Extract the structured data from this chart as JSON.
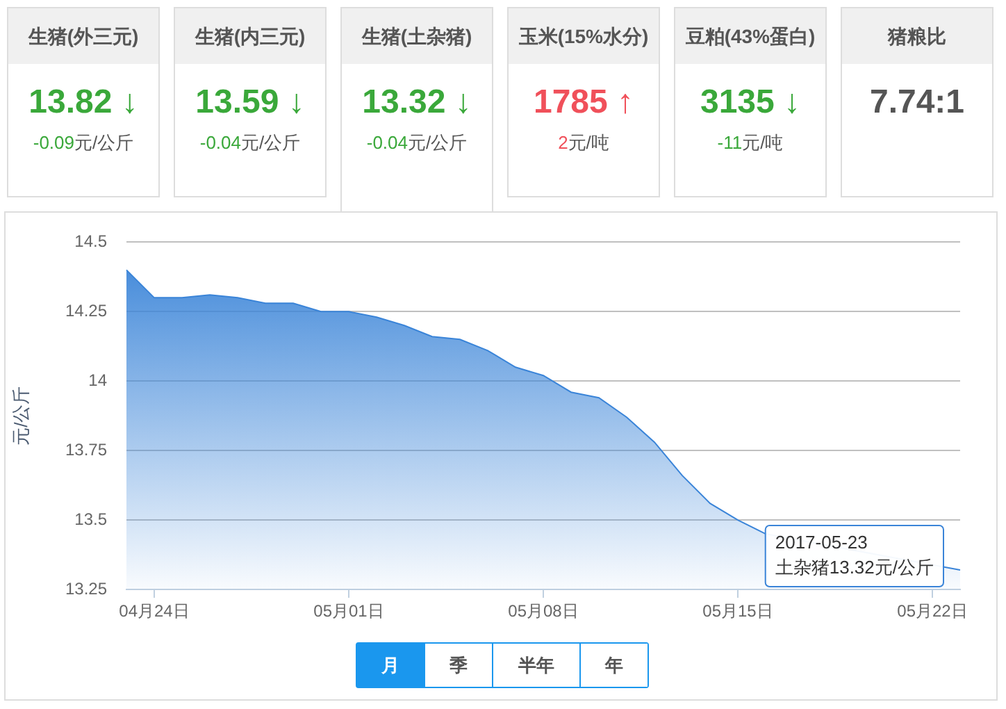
{
  "chart_data": [
    {
      "type": "other",
      "title": "生猪(外三元)",
      "annotations": [
        "13.82 ↓",
        "-0.09",
        "元/公斤"
      ],
      "color": "#3aa83a"
    },
    {
      "type": "other",
      "title": "生猪(内三元)",
      "annotations": [
        "13.59 ↓",
        "-0.04",
        "元/公斤"
      ],
      "color": "#3aa83a"
    },
    {
      "type": "other",
      "title": "生猪(土杂猪)",
      "annotations": [
        "13.32 ↓",
        "-0.04",
        "元/公斤"
      ],
      "color": "#3aa83a"
    },
    {
      "type": "other",
      "title": "玉米(15%水分)",
      "annotations": [
        "1785 ↑",
        "2",
        "元/吨"
      ],
      "color": "#f0505a"
    },
    {
      "type": "other",
      "title": "豆粕(43%蛋白)",
      "annotations": [
        "3135 ↓",
        "-11",
        "元/吨"
      ],
      "color": "#3aa83a"
    },
    {
      "type": "other",
      "title": "猪粮比",
      "annotations": [
        "7.74:1"
      ],
      "color": "#555555"
    },
    {
      "type": "area",
      "ylabel": "元/公斤",
      "color": "#3a84d8",
      "grid": "y",
      "categories": [
        null,
        "04月24日",
        null,
        null,
        null,
        null,
        null,
        null,
        "05月01日",
        null,
        null,
        null,
        null,
        null,
        null,
        "05月08日",
        null,
        null,
        null,
        null,
        null,
        null,
        "05月15日",
        null,
        null,
        null,
        null,
        null,
        null,
        "05月22日",
        null
      ],
      "values": [
        14.4,
        14.3,
        14.3,
        14.31,
        14.3,
        14.28,
        14.28,
        14.25,
        14.25,
        14.23,
        14.2,
        14.16,
        14.15,
        14.11,
        14.05,
        14.02,
        13.96,
        13.94,
        13.87,
        13.78,
        13.66,
        13.56,
        13.5,
        13.45,
        null,
        null,
        null,
        null,
        null,
        null,
        13.32
      ],
      "ylim": [
        13.25,
        14.5
      ],
      "yticks": [
        13.25,
        13.5,
        13.75,
        14,
        14.25,
        14.5
      ],
      "annotations": [
        "2017-05-23\n土杂猪13.32元/公斤",
        "月",
        "季",
        "半年",
        "年"
      ]
    }
  ]
}
